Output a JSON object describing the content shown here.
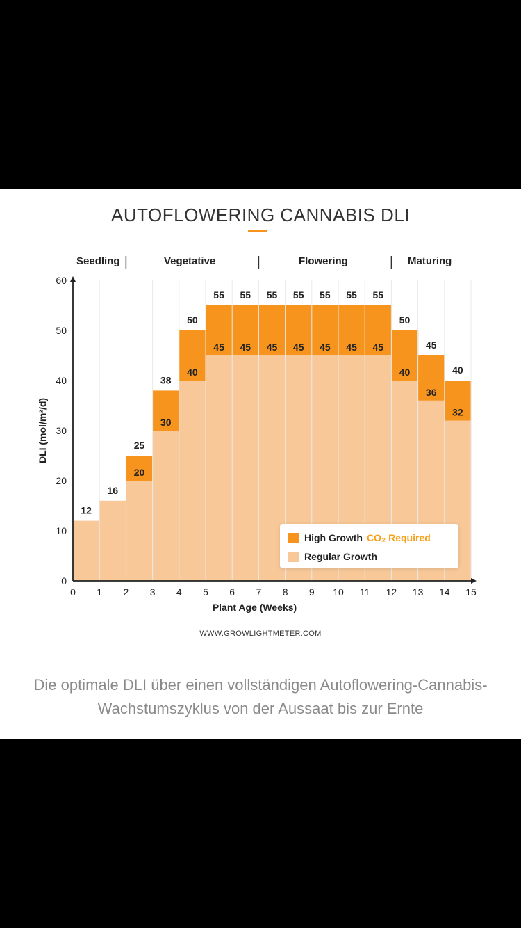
{
  "chart_data": {
    "type": "bar",
    "title": "AUTOFLOWERING CANNABIS DLI",
    "xlabel": "Plant Age (Weeks)",
    "ylabel": "DLI (mol/m²/d)",
    "xlim": [
      0,
      15
    ],
    "ylim": [
      0,
      60
    ],
    "x_ticks": [
      0,
      1,
      2,
      3,
      4,
      5,
      6,
      7,
      8,
      9,
      10,
      11,
      12,
      13,
      14,
      15
    ],
    "y_ticks": [
      0,
      10,
      20,
      30,
      40,
      50,
      60
    ],
    "grid": true,
    "phases": [
      {
        "label": "Seedling",
        "start": 0,
        "end": 2
      },
      {
        "label": "Vegetative",
        "start": 2,
        "end": 7
      },
      {
        "label": "Flowering",
        "start": 7,
        "end": 12
      },
      {
        "label": "Maturing",
        "start": 12,
        "end": 15
      }
    ],
    "series": [
      {
        "name": "Regular Growth",
        "color": "#f8c898",
        "values": [
          12,
          16,
          20,
          30,
          40,
          45,
          45,
          45,
          45,
          45,
          45,
          45,
          40,
          36,
          32
        ]
      },
      {
        "name": "High Growth",
        "color": "#f7941d",
        "values": [
          12,
          16,
          25,
          38,
          50,
          55,
          55,
          55,
          55,
          55,
          55,
          55,
          50,
          45,
          40
        ]
      }
    ],
    "legend": {
      "position": "bottom-right",
      "high_label": "High Growth",
      "high_note": "CO₂ Required",
      "regular_label": "Regular Growth"
    }
  },
  "website": "WWW.GROWLIGHTMETER.COM",
  "caption": "Die optimale DLI über einen vollständigen Autoflowering-Cannabis-Wachstumszyklus von der Aussaat bis zur Ernte",
  "colors": {
    "accent": "#f7941d",
    "light": "#f8c898",
    "caption": "#8a8a8a"
  }
}
